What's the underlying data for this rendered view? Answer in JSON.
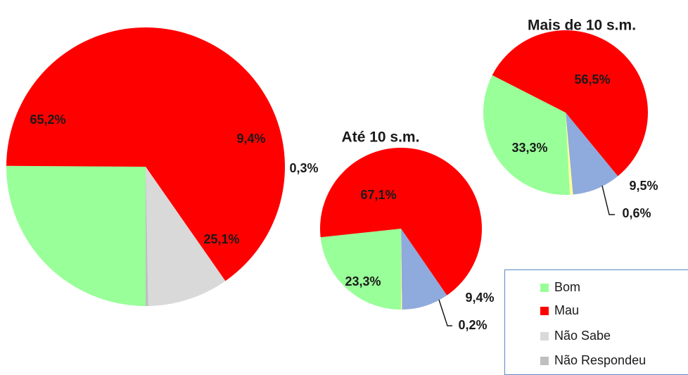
{
  "chart_data": [
    {
      "type": "pie",
      "title": "",
      "categories": [
        "Bom",
        "Mau",
        "Não Sabe",
        "Não Respondeu"
      ],
      "values": [
        25.1,
        65.2,
        9.4,
        0.3
      ],
      "labels": [
        "25,1%",
        "65,2%",
        "9,4%",
        "0,3%"
      ]
    },
    {
      "type": "pie",
      "title": "Até 10 s.m.",
      "categories": [
        "Bom",
        "Mau",
        "Não Sabe",
        "Não Respondeu"
      ],
      "values": [
        23.3,
        67.1,
        9.4,
        0.2
      ],
      "labels": [
        "23,3%",
        "67,1%",
        "9,4%",
        "0,2%"
      ]
    },
    {
      "type": "pie",
      "title": "Mais de 10 s.m.",
      "categories": [
        "Bom",
        "Mau",
        "Não Sabe",
        "Não Respondeu"
      ],
      "values": [
        33.3,
        56.5,
        9.5,
        0.6
      ],
      "labels": [
        "33,3%",
        "56,5%",
        "9,5%",
        "0,6%"
      ]
    }
  ],
  "legend": {
    "items": [
      {
        "label": "Bom",
        "color": "#99ff99"
      },
      {
        "label": "Mau",
        "color": "#ff0000"
      },
      {
        "label": "Não Sabe",
        "color": "#d9d9d9"
      },
      {
        "label": "Não Respondeu",
        "color": "#bfbfbf"
      }
    ]
  },
  "slice_colors": {
    "total": [
      "#99ff99",
      "#ff0000",
      "#d9d9d9",
      "#bfbfbf"
    ],
    "segment": [
      "#99ff99",
      "#ff0000",
      "#8faadc",
      "#ffff99"
    ]
  }
}
